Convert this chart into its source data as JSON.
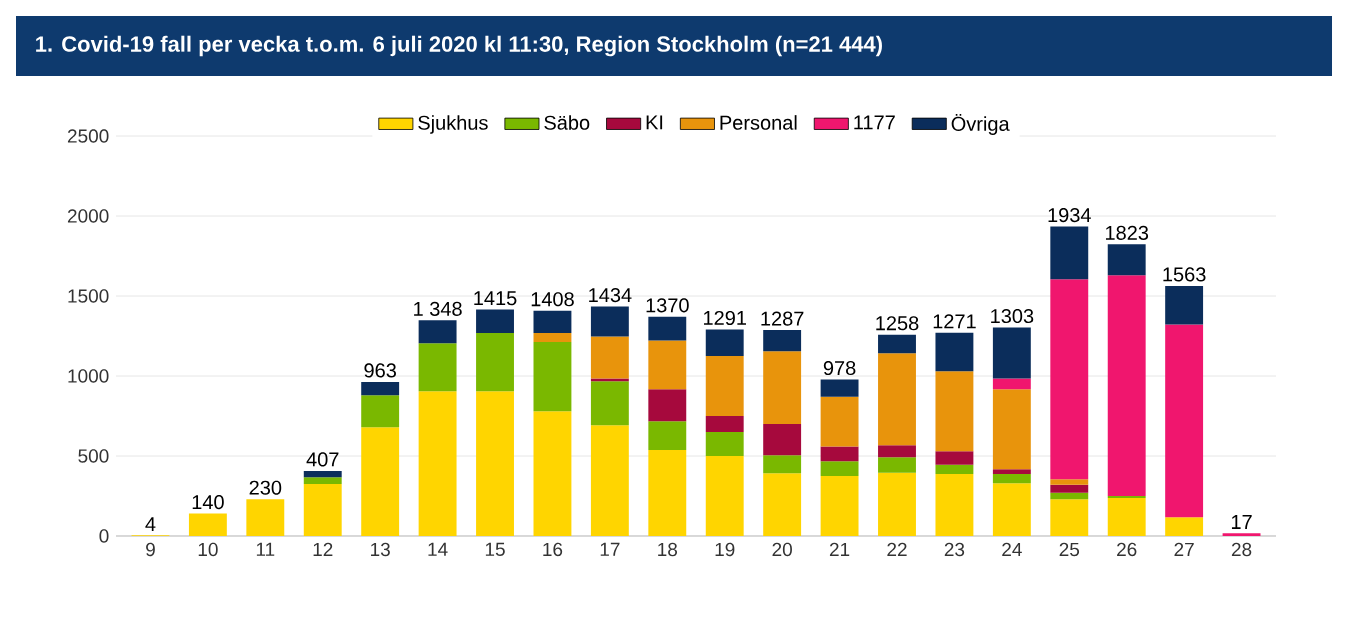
{
  "chart_data": {
    "type": "bar",
    "title": "1. Covid-19 fall per vecka t.o.m. 6 juli 2020 kl 11:30, Region Stockholm (n=21 444)",
    "categories": [
      "9",
      "10",
      "11",
      "12",
      "13",
      "14",
      "15",
      "16",
      "17",
      "18",
      "19",
      "20",
      "21",
      "22",
      "23",
      "24",
      "25",
      "26",
      "27",
      "28"
    ],
    "series": [
      {
        "name": "Sjukhus",
        "color": "#ffd500",
        "values": [
          4,
          140,
          230,
          325,
          680,
          905,
          905,
          780,
          692,
          538,
          500,
          392,
          375,
          396,
          388,
          329,
          229,
          238,
          117,
          null
        ]
      },
      {
        "name": "Säbo",
        "color": "#7ab800",
        "values": [
          null,
          null,
          null,
          42,
          200,
          300,
          363,
          433,
          275,
          179,
          150,
          113,
          92,
          96,
          58,
          59,
          42,
          12,
          null,
          null
        ]
      },
      {
        "name": "KI",
        "color": "#a6093d",
        "values": [
          null,
          null,
          null,
          null,
          null,
          null,
          null,
          null,
          17,
          200,
          100,
          195,
          92,
          75,
          84,
          29,
          50,
          null,
          null,
          null
        ]
      },
      {
        "name": "Personal",
        "color": "#e8940c",
        "values": [
          null,
          null,
          null,
          null,
          null,
          null,
          null,
          55,
          263,
          305,
          375,
          455,
          312,
          575,
          500,
          500,
          33,
          null,
          null,
          null
        ]
      },
      {
        "name": "1177",
        "color": "#f0166e",
        "values": [
          null,
          null,
          null,
          null,
          null,
          null,
          null,
          null,
          null,
          null,
          null,
          null,
          null,
          null,
          null,
          67,
          1251,
          1380,
          1205,
          17
        ]
      },
      {
        "name": "Övriga",
        "color": "#0b2d5b",
        "values": [
          null,
          null,
          null,
          40,
          83,
          143,
          147,
          140,
          187,
          148,
          166,
          132,
          107,
          116,
          241,
          319,
          329,
          193,
          241,
          null
        ]
      }
    ],
    "stacked": true,
    "totals": [
      "4",
      "140",
      "230",
      "407",
      "963",
      "1 348",
      "1415",
      "1408",
      "1434",
      "1370",
      "1291",
      "1287",
      "978",
      "1258",
      "1271",
      "1303",
      "1934",
      "1823",
      "1563",
      "17"
    ],
    "ylim": [
      0,
      2500
    ],
    "yticks": [
      0,
      500,
      1000,
      1500,
      2000,
      2500
    ],
    "grid": "y",
    "legend": "top"
  }
}
